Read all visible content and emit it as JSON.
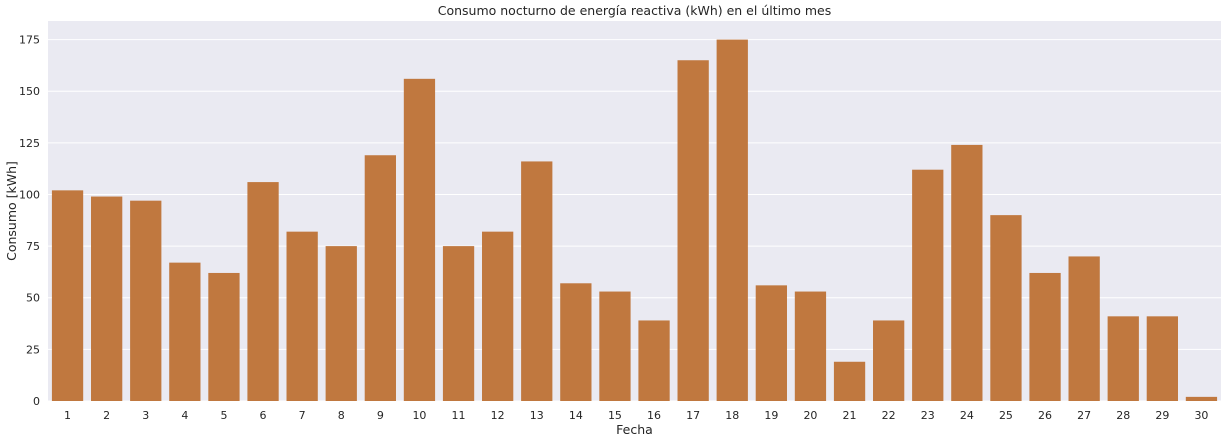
{
  "chart_data": {
    "type": "bar",
    "title": "Consumo nocturno de energía reactiva (kWh) en el último mes",
    "xlabel": "Fecha",
    "ylabel": "Consumo [kWh]",
    "categories": [
      "1",
      "2",
      "3",
      "4",
      "5",
      "6",
      "7",
      "8",
      "9",
      "10",
      "11",
      "12",
      "13",
      "14",
      "15",
      "16",
      "17",
      "18",
      "19",
      "20",
      "21",
      "22",
      "23",
      "24",
      "25",
      "26",
      "27",
      "28",
      "29",
      "30"
    ],
    "values": [
      102,
      99,
      97,
      67,
      62,
      106,
      82,
      75,
      119,
      156,
      75,
      82,
      116,
      57,
      53,
      39,
      165,
      175,
      56,
      53,
      19,
      39,
      112,
      124,
      90,
      62,
      70,
      41,
      41,
      2
    ],
    "ylim": [
      0,
      184
    ],
    "yticks": [
      0,
      25,
      50,
      75,
      100,
      125,
      150,
      175
    ],
    "grid": true,
    "legend": "none",
    "colors": {
      "bar": "#c0783f",
      "plot_background": "#eaeaf2",
      "grid": "#ffffff",
      "text": "#262626"
    }
  }
}
